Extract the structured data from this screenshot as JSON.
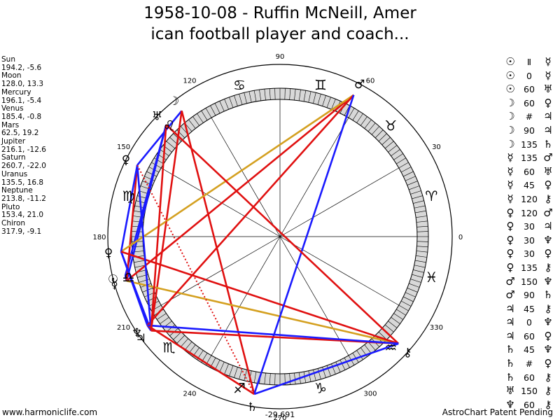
{
  "title_line1": "1958-10-08 - Ruffin McNeill, Amer",
  "title_line2": "ican football player and coach...",
  "footer_left": "www.harmoniclife.com",
  "footer_right": "AstroChart Patent Pending",
  "planets": [
    {
      "name": "Sun",
      "value": "194.2, -5.6"
    },
    {
      "name": "Moon",
      "value": "128.0, 13.3"
    },
    {
      "name": "Mercury",
      "value": "196.1, -5.4"
    },
    {
      "name": "Venus",
      "value": "185.4, -0.8"
    },
    {
      "name": "Mars",
      "value": "62.5, 19.2"
    },
    {
      "name": "Jupiter",
      "value": "216.1, -12.6"
    },
    {
      "name": "Saturn",
      "value": "260.7, -22.0"
    },
    {
      "name": "Uranus",
      "value": "135.5, 16.8"
    },
    {
      "name": "Neptune",
      "value": "213.8, -11.2"
    },
    {
      "name": "Pluto",
      "value": "153.4, 21.0"
    },
    {
      "name": "Chiron",
      "value": "317.9, -9.1"
    }
  ],
  "aspects": [
    {
      "p1": "☉",
      "kind": "Ⅱ",
      "p2": "☿"
    },
    {
      "p1": "☉",
      "kind": "0",
      "p2": "☿"
    },
    {
      "p1": "☉",
      "kind": "60",
      "p2": "♅"
    },
    {
      "p1": "☽",
      "kind": "60",
      "p2": "♀"
    },
    {
      "p1": "☽",
      "kind": "#",
      "p2": "♃"
    },
    {
      "p1": "☽",
      "kind": "90",
      "p2": "♃"
    },
    {
      "p1": "☽",
      "kind": "135",
      "p2": "♄"
    },
    {
      "p1": "☿",
      "kind": "135",
      "p2": "♂"
    },
    {
      "p1": "☿",
      "kind": "60",
      "p2": "♅"
    },
    {
      "p1": "☿",
      "kind": "45",
      "p2": "♀"
    },
    {
      "p1": "☿",
      "kind": "120",
      "p2": "⚷"
    },
    {
      "p1": "♀",
      "kind": "120",
      "p2": "♂"
    },
    {
      "p1": "♀",
      "kind": "30",
      "p2": "♃"
    },
    {
      "p1": "♀",
      "kind": "30",
      "p2": "♆"
    },
    {
      "p1": "♀",
      "kind": "30",
      "p2": "♀"
    },
    {
      "p1": "♀",
      "kind": "135",
      "p2": "⚷"
    },
    {
      "p1": "♂",
      "kind": "150",
      "p2": "♆"
    },
    {
      "p1": "♂",
      "kind": "90",
      "p2": "♄"
    },
    {
      "p1": "♃",
      "kind": "45",
      "p2": "⚷"
    },
    {
      "p1": "♃",
      "kind": "0",
      "p2": "♆"
    },
    {
      "p1": "♃",
      "kind": "60",
      "p2": "♀"
    },
    {
      "p1": "♄",
      "kind": "45",
      "p2": "♆"
    },
    {
      "p1": "♄",
      "kind": "#",
      "p2": "♀"
    },
    {
      "p1": "♄",
      "kind": "60",
      "p2": "⚷"
    },
    {
      "p1": "♅",
      "kind": "150",
      "p2": "⚷"
    },
    {
      "p1": "♆",
      "kind": "60",
      "p2": "⚷"
    }
  ],
  "colors": {
    "red": "#e01010",
    "blue": "#1a1aff",
    "gold": "#d4a020",
    "ring_fill": "#d8d8d8",
    "background": "#ffffff"
  },
  "chart_data": {
    "type": "radial",
    "degree_labels": [
      {
        "deg": 0,
        "label": "0"
      },
      {
        "deg": 30,
        "label": "30"
      },
      {
        "deg": 60,
        "label": "60"
      },
      {
        "deg": 90,
        "label": "90"
      },
      {
        "deg": 120,
        "label": "120"
      },
      {
        "deg": 150,
        "label": "150"
      },
      {
        "deg": 180,
        "label": "180"
      },
      {
        "deg": 210,
        "label": "210"
      },
      {
        "deg": 240,
        "label": "240"
      },
      {
        "deg": 270,
        "label": "270"
      },
      {
        "deg": 300,
        "label": "300"
      },
      {
        "deg": 330,
        "label": "330"
      }
    ],
    "bottom_label": "-29,691",
    "signs": [
      {
        "deg": 15,
        "glyph": "♈",
        "name": "aries"
      },
      {
        "deg": 45,
        "glyph": "♉",
        "name": "taurus"
      },
      {
        "deg": 75,
        "glyph": "♊",
        "name": "gemini"
      },
      {
        "deg": 105,
        "glyph": "♋",
        "name": "cancer"
      },
      {
        "deg": 135,
        "glyph": "♌",
        "name": "leo"
      },
      {
        "deg": 165,
        "glyph": "♍",
        "name": "virgo"
      },
      {
        "deg": 195,
        "glyph": "♎",
        "name": "libra"
      },
      {
        "deg": 225,
        "glyph": "♏",
        "name": "scorpio"
      },
      {
        "deg": 255,
        "glyph": "♐",
        "name": "sagittarius"
      },
      {
        "deg": 285,
        "glyph": "♑",
        "name": "capricorn"
      },
      {
        "deg": 315,
        "glyph": "♒",
        "name": "aquarius"
      },
      {
        "deg": 345,
        "glyph": "♓",
        "name": "pisces"
      }
    ],
    "bodies": [
      {
        "key": "sun",
        "glyph": "☉",
        "lon": 194.2
      },
      {
        "key": "moon",
        "glyph": "☽",
        "lon": 128.0
      },
      {
        "key": "mercury",
        "glyph": "☿",
        "lon": 196.1
      },
      {
        "key": "venus",
        "glyph": "♀",
        "lon": 185.4
      },
      {
        "key": "mars",
        "glyph": "♂",
        "lon": 62.5
      },
      {
        "key": "jupiter",
        "glyph": "♃",
        "lon": 216.1
      },
      {
        "key": "saturn",
        "glyph": "♄",
        "lon": 260.7
      },
      {
        "key": "uranus",
        "glyph": "♅",
        "lon": 135.5
      },
      {
        "key": "neptune",
        "glyph": "♆",
        "lon": 213.8
      },
      {
        "key": "pluto",
        "glyph": "♀",
        "lon": 153.4
      },
      {
        "key": "chiron",
        "glyph": "⚷",
        "lon": 317.9
      }
    ],
    "aspect_lines": [
      {
        "from": "sun",
        "to": "mercury",
        "color": "blue"
      },
      {
        "from": "sun",
        "to": "uranus",
        "color": "blue"
      },
      {
        "from": "moon",
        "to": "pluto",
        "color": "blue"
      },
      {
        "from": "moon",
        "to": "jupiter",
        "color": "red"
      },
      {
        "from": "moon",
        "to": "saturn",
        "color": "red"
      },
      {
        "from": "mercury",
        "to": "mars",
        "color": "red"
      },
      {
        "from": "mercury",
        "to": "uranus",
        "color": "blue"
      },
      {
        "from": "mercury",
        "to": "pluto",
        "color": "red"
      },
      {
        "from": "mercury",
        "to": "chiron",
        "color": "gold"
      },
      {
        "from": "venus",
        "to": "mars",
        "color": "gold"
      },
      {
        "from": "venus",
        "to": "jupiter",
        "color": "blue"
      },
      {
        "from": "venus",
        "to": "neptune",
        "color": "blue"
      },
      {
        "from": "venus",
        "to": "pluto",
        "color": "blue"
      },
      {
        "from": "venus",
        "to": "chiron",
        "color": "red"
      },
      {
        "from": "mars",
        "to": "neptune",
        "color": "red"
      },
      {
        "from": "mars",
        "to": "saturn",
        "color": "blue"
      },
      {
        "from": "jupiter",
        "to": "chiron",
        "color": "red"
      },
      {
        "from": "jupiter",
        "to": "neptune",
        "color": "blue"
      },
      {
        "from": "jupiter",
        "to": "pluto",
        "color": "blue"
      },
      {
        "from": "saturn",
        "to": "neptune",
        "color": "red"
      },
      {
        "from": "saturn",
        "to": "pluto",
        "color": "red",
        "dotted": true
      },
      {
        "from": "saturn",
        "to": "chiron",
        "color": "blue"
      },
      {
        "from": "uranus",
        "to": "chiron",
        "color": "red"
      },
      {
        "from": "neptune",
        "to": "chiron",
        "color": "blue"
      },
      {
        "from": "uranus",
        "to": "jupiter",
        "color": "red"
      }
    ]
  }
}
